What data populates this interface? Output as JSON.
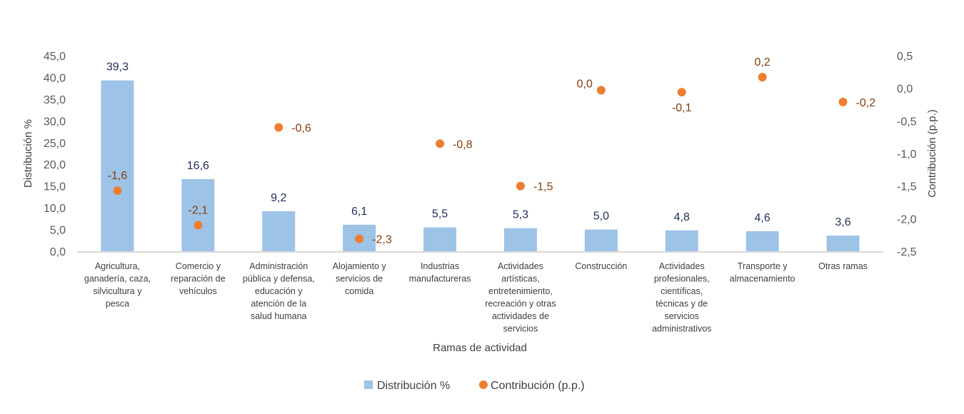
{
  "chart_data": {
    "type": "bar+scatter",
    "xlabel": "Ramas de actividad",
    "ylabel_left": "Distribución %",
    "ylabel_right": "Contribución (p.p.)",
    "ylim_left": [
      0,
      45
    ],
    "ylim_right": [
      -2.5,
      0.5
    ],
    "yticks_left": [
      "0,0",
      "5,0",
      "10,0",
      "15,0",
      "20,0",
      "25,0",
      "30,0",
      "35,0",
      "40,0",
      "45,0"
    ],
    "yticks_right": [
      "-2,5",
      "-2,0",
      "-1,5",
      "-1,0",
      "-0,5",
      "0,0",
      "0,5"
    ],
    "grid": false,
    "legend_placement": "bottom",
    "categories": [
      [
        "Agricultura,",
        "ganadería, caza,",
        "silvicultura y",
        "pesca"
      ],
      [
        "Comercio y",
        "reparación de",
        "vehículos"
      ],
      [
        "Administración",
        "pública y defensa,",
        "educación y",
        "atención de la",
        "salud humana"
      ],
      [
        "Alojamiento y",
        "servicios de",
        "comida"
      ],
      [
        "Industrias",
        "manufactureras"
      ],
      [
        "Actividades",
        "artísticas,",
        "entretenimiento,",
        "recreación y otras",
        "actividades de",
        "servicios"
      ],
      [
        "Construcción"
      ],
      [
        "Actividades",
        "profesionales,",
        "científicas,",
        "técnicas y de",
        "servicios",
        "administrativos"
      ],
      [
        "Transporte y",
        "almacenamiento"
      ],
      [
        "Otras ramas"
      ]
    ],
    "series": [
      {
        "name": "Distribución %",
        "type": "bar",
        "axis": "left",
        "color": "#9dc3e6",
        "values": [
          39.3,
          16.6,
          9.2,
          6.1,
          5.5,
          5.3,
          5.0,
          4.8,
          4.6,
          3.6
        ],
        "labels": [
          "39,3",
          "16,6",
          "9,2",
          "6,1",
          "5,5",
          "5,3",
          "5,0",
          "4,8",
          "4,6",
          "3,6"
        ]
      },
      {
        "name": "Contribución (p.p.)",
        "type": "scatter",
        "axis": "right",
        "color": "#ed7d31",
        "values": [
          -1.57,
          -2.1,
          -0.6,
          -2.31,
          -0.85,
          -1.5,
          -0.03,
          -0.06,
          0.17,
          -0.21
        ],
        "labels": [
          "-1,6",
          "-2,1",
          "-0,6",
          "-2,3",
          "-0,8",
          "-1,5",
          "0,0",
          "-0,1",
          "0,2",
          "-0,2"
        ]
      }
    ]
  }
}
